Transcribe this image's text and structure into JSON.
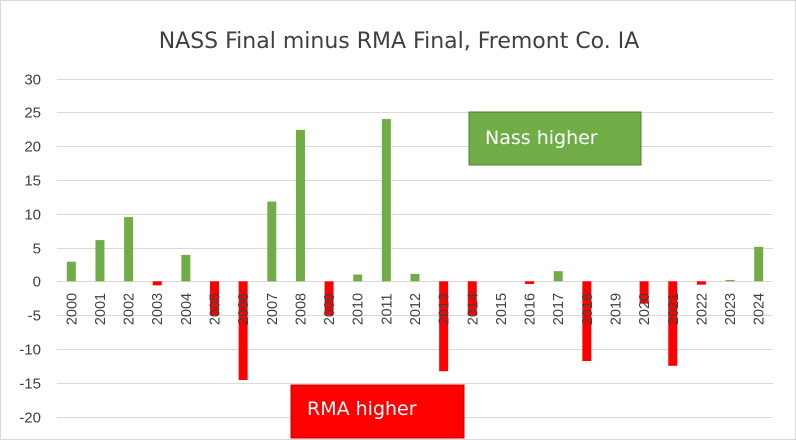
{
  "chart_data": {
    "type": "bar",
    "title": "NASS Final minus RMA Final,  Fremont Co. IA",
    "xlabel": "",
    "ylabel": "",
    "ylim": [
      -20,
      30
    ],
    "yticks": [
      30,
      25,
      20,
      15,
      10,
      5,
      0,
      -5,
      -10,
      -15,
      -20
    ],
    "grid": true,
    "categories": [
      "2000",
      "2001",
      "2002",
      "2003",
      "2004",
      "2005",
      "2006",
      "2007",
      "2008",
      "2009",
      "2010",
      "2011",
      "2012",
      "2013",
      "2014",
      "2015",
      "2016",
      "2017",
      "2018",
      "2019",
      "2020",
      "2021",
      "2022",
      "2023",
      "2024"
    ],
    "values": [
      2.9,
      6.1,
      9.5,
      -0.6,
      3.9,
      -5.0,
      -14.6,
      11.8,
      22.4,
      -5.0,
      1.0,
      24.0,
      1.1,
      -13.3,
      -5.0,
      0.0,
      -0.4,
      1.5,
      -11.8,
      0.0,
      -3.3,
      -12.5,
      -0.5,
      0.2,
      5.1
    ],
    "colors": {
      "positive": "#70ad47",
      "negative": "#ff0000"
    },
    "annotations": [
      {
        "text": "Nass higher",
        "fill": "#70ad47"
      },
      {
        "text": "RMA higher",
        "fill": "#ff0000"
      }
    ]
  }
}
